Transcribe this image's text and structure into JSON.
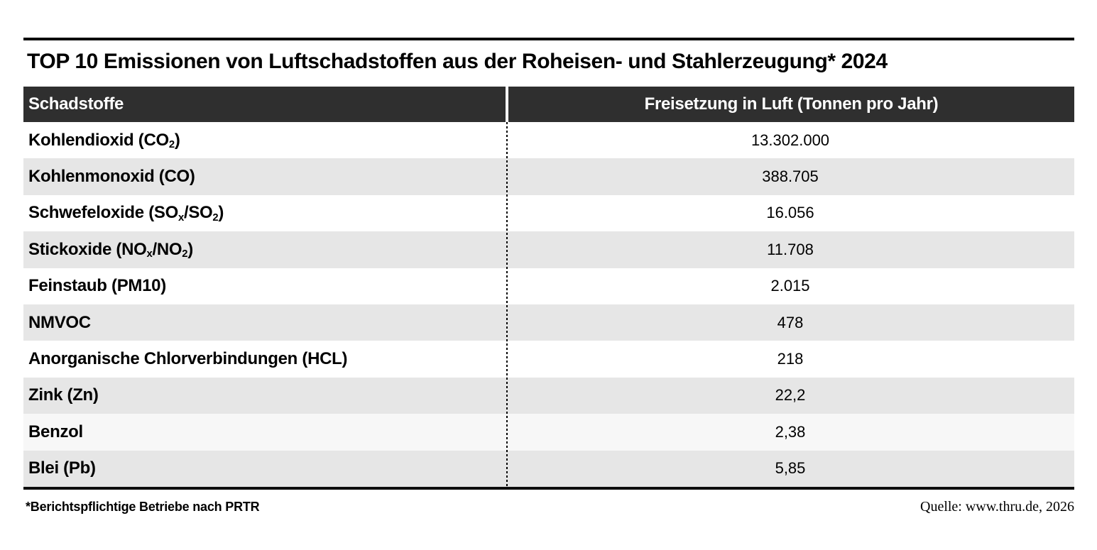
{
  "page": {
    "title": "TOP 10 Emissionen von Luftschadstoffen aus der Roheisen- und Stahlerzeugung* 2024",
    "footnote": "*Berichtspflichtige Betriebe nach PRTR",
    "source": "Quelle: www.thru.de, 2026"
  },
  "colors": {
    "header_bg": "#2f2f2f",
    "header_text": "#ffffff",
    "rule": "#0d0d0d",
    "row_white": "#ffffff",
    "row_gray": "#e6e6e6",
    "row_tint": "#f7f7f7"
  },
  "table": {
    "columns": [
      "Schadstoffe",
      "Freisetzung in Luft (Tonnen pro Jahr)"
    ],
    "rows": [
      {
        "name_parts": [
          {
            "t": "Kohlendioxid (CO"
          },
          {
            "t": "2",
            "sub": true
          },
          {
            "t": ")"
          }
        ],
        "value": "13.302.000",
        "shade": "white"
      },
      {
        "name_parts": [
          {
            "t": "Kohlenmonoxid (CO)"
          }
        ],
        "value": "388.705",
        "shade": "gray"
      },
      {
        "name_parts": [
          {
            "t": "Schwefeloxide (SO"
          },
          {
            "t": "x",
            "sub": true
          },
          {
            "t": "/SO"
          },
          {
            "t": "2",
            "sub": true
          },
          {
            "t": ")"
          }
        ],
        "value": "16.056",
        "shade": "white"
      },
      {
        "name_parts": [
          {
            "t": "Stickoxide (NO"
          },
          {
            "t": "x",
            "sub": true
          },
          {
            "t": "/NO"
          },
          {
            "t": "2",
            "sub": true
          },
          {
            "t": ")"
          }
        ],
        "value": "11.708",
        "shade": "gray"
      },
      {
        "name_parts": [
          {
            "t": "Feinstaub (PM10)"
          }
        ],
        "value": "2.015",
        "shade": "white"
      },
      {
        "name_parts": [
          {
            "t": "NMVOC"
          }
        ],
        "value": "478",
        "shade": "gray"
      },
      {
        "name_parts": [
          {
            "t": "Anorganische Chlorverbindungen (HCL)"
          }
        ],
        "value": "218",
        "shade": "white"
      },
      {
        "name_parts": [
          {
            "t": "Zink (Zn)"
          }
        ],
        "value": "22,2",
        "shade": "gray"
      },
      {
        "name_parts": [
          {
            "t": "Benzol"
          }
        ],
        "value": "2,38",
        "shade": "tint"
      },
      {
        "name_parts": [
          {
            "t": "Blei (Pb)"
          }
        ],
        "value": "5,85",
        "shade": "gray"
      }
    ]
  },
  "chart_data": {
    "type": "table",
    "title": "TOP 10 Emissionen von Luftschadstoffen aus der Roheisen- und Stahlerzeugung* 2024",
    "columns": [
      "Schadstoffe",
      "Freisetzung in Luft (Tonnen pro Jahr)"
    ],
    "categories": [
      "Kohlendioxid (CO2)",
      "Kohlenmonoxid (CO)",
      "Schwefeloxide (SOx/SO2)",
      "Stickoxide (NOx/NO2)",
      "Feinstaub (PM10)",
      "NMVOC",
      "Anorganische Chlorverbindungen (HCL)",
      "Zink (Zn)",
      "Benzol",
      "Blei (Pb)"
    ],
    "values": [
      13302000,
      388705,
      16056,
      11708,
      2015,
      478,
      218,
      22.2,
      2.38,
      5.85
    ],
    "values_display": [
      "13.302.000",
      "388.705",
      "16.056",
      "11.708",
      "2.015",
      "478",
      "218",
      "22,2",
      "2,38",
      "5,85"
    ],
    "footnote": "*Berichtspflichtige Betriebe nach PRTR",
    "source": "Quelle: www.thru.de, 2026",
    "legend_position": "none",
    "grid": false
  }
}
